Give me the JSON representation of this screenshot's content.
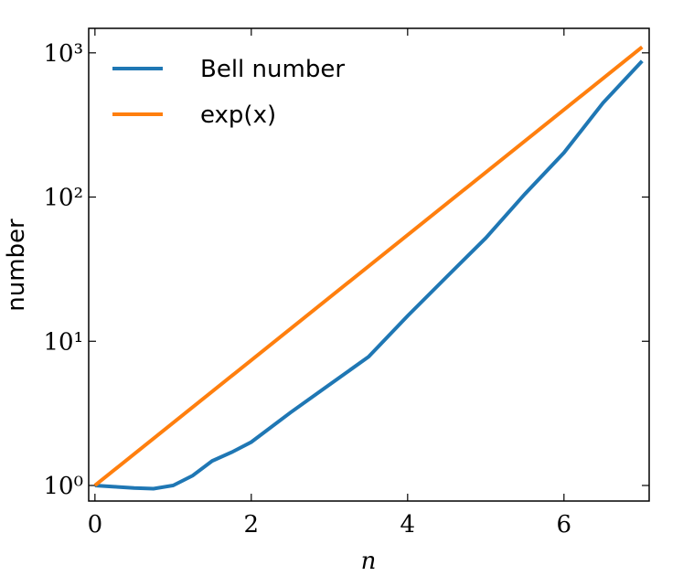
{
  "chart_data": {
    "type": "line",
    "xlabel": "n",
    "ylabel": "number",
    "xlim": [
      -0.08,
      7.09
    ],
    "ylim": [
      0.78,
      1479
    ],
    "xticks": [
      0,
      2,
      4,
      6
    ],
    "yticks": [
      {
        "value": 1,
        "label": "10⁰"
      },
      {
        "value": 10,
        "label": "10¹"
      },
      {
        "value": 100,
        "label": "10²"
      },
      {
        "value": 1000,
        "label": "10³"
      }
    ],
    "log_y": true,
    "legend": "upper left",
    "series": [
      {
        "name": "Bell number",
        "color": "#1f77b4",
        "x": [
          0,
          0.25,
          0.5,
          0.75,
          1,
          1.25,
          1.5,
          1.75,
          2,
          2.5,
          3,
          3.5,
          4,
          4.5,
          5,
          5.5,
          6,
          6.5,
          7
        ],
        "values": [
          1,
          0.98,
          0.96,
          0.95,
          1,
          1.17,
          1.48,
          1.7,
          2,
          3.2,
          5,
          7.8,
          15,
          28,
          52,
          105,
          203,
          450,
          877
        ]
      },
      {
        "name": "exp(x)",
        "color": "#ff7f0e",
        "x": [
          0,
          7
        ],
        "values": [
          1,
          1096.63
        ]
      }
    ]
  }
}
